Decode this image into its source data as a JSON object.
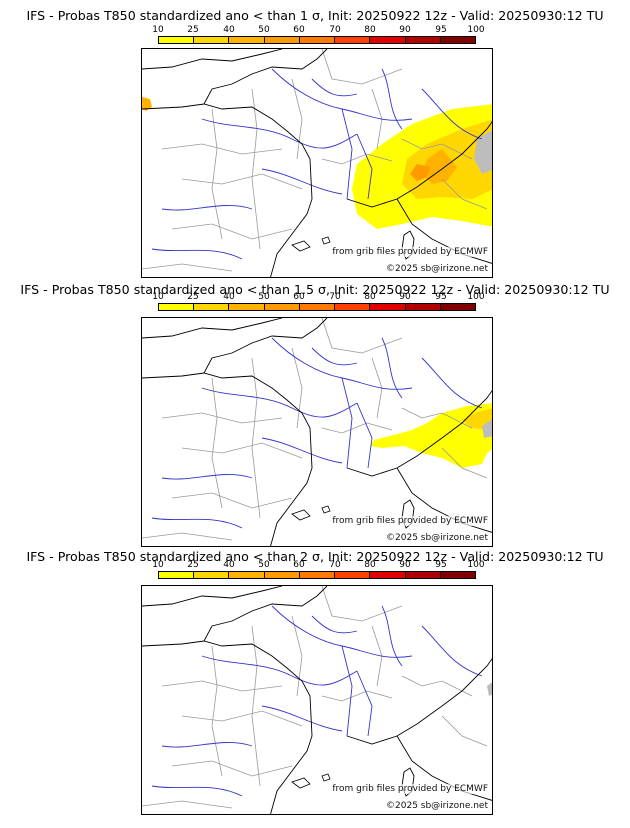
{
  "panels": [
    {
      "title": "IFS - Probas T850  standardized ano < than 1 σ, Init: 20250922 12z - Valid: 20250930:12 TU",
      "sigma_threshold": 1,
      "credits": {
        "grib": "from grib files provided by ECMWF",
        "copyright": "©2025 sb@irizone.net"
      }
    },
    {
      "title": "IFS - Probas T850  standardized ano < than 1.5 σ, Init: 20250922 12z - Valid: 20250930:12 TU",
      "sigma_threshold": 1.5,
      "credits": {
        "grib": "from grib files provided by ECMWF",
        "copyright": "©2025 sb@irizone.net"
      }
    },
    {
      "title": "IFS - Probas T850  standardized ano < than 2 σ, Init: 20250922 12z - Valid: 20250930:12 TU",
      "sigma_threshold": 2,
      "credits": {
        "grib": "from grib files provided by ECMWF",
        "copyright": "©2025 sb@irizone.net"
      }
    }
  ],
  "scale": {
    "ticks": [
      "10",
      "25",
      "40",
      "50",
      "60",
      "70",
      "80",
      "90",
      "95",
      "100"
    ],
    "colors": [
      "#ffff00",
      "#ffd700",
      "#ffb300",
      "#ff9a00",
      "#ff7a00",
      "#ff4000",
      "#e00000",
      "#b00000",
      "#800000"
    ]
  },
  "map_colors": {
    "coast": "#000000",
    "rivers": "#3333cc",
    "borders": "#999999",
    "gray_area": "#bdbdbd"
  }
}
